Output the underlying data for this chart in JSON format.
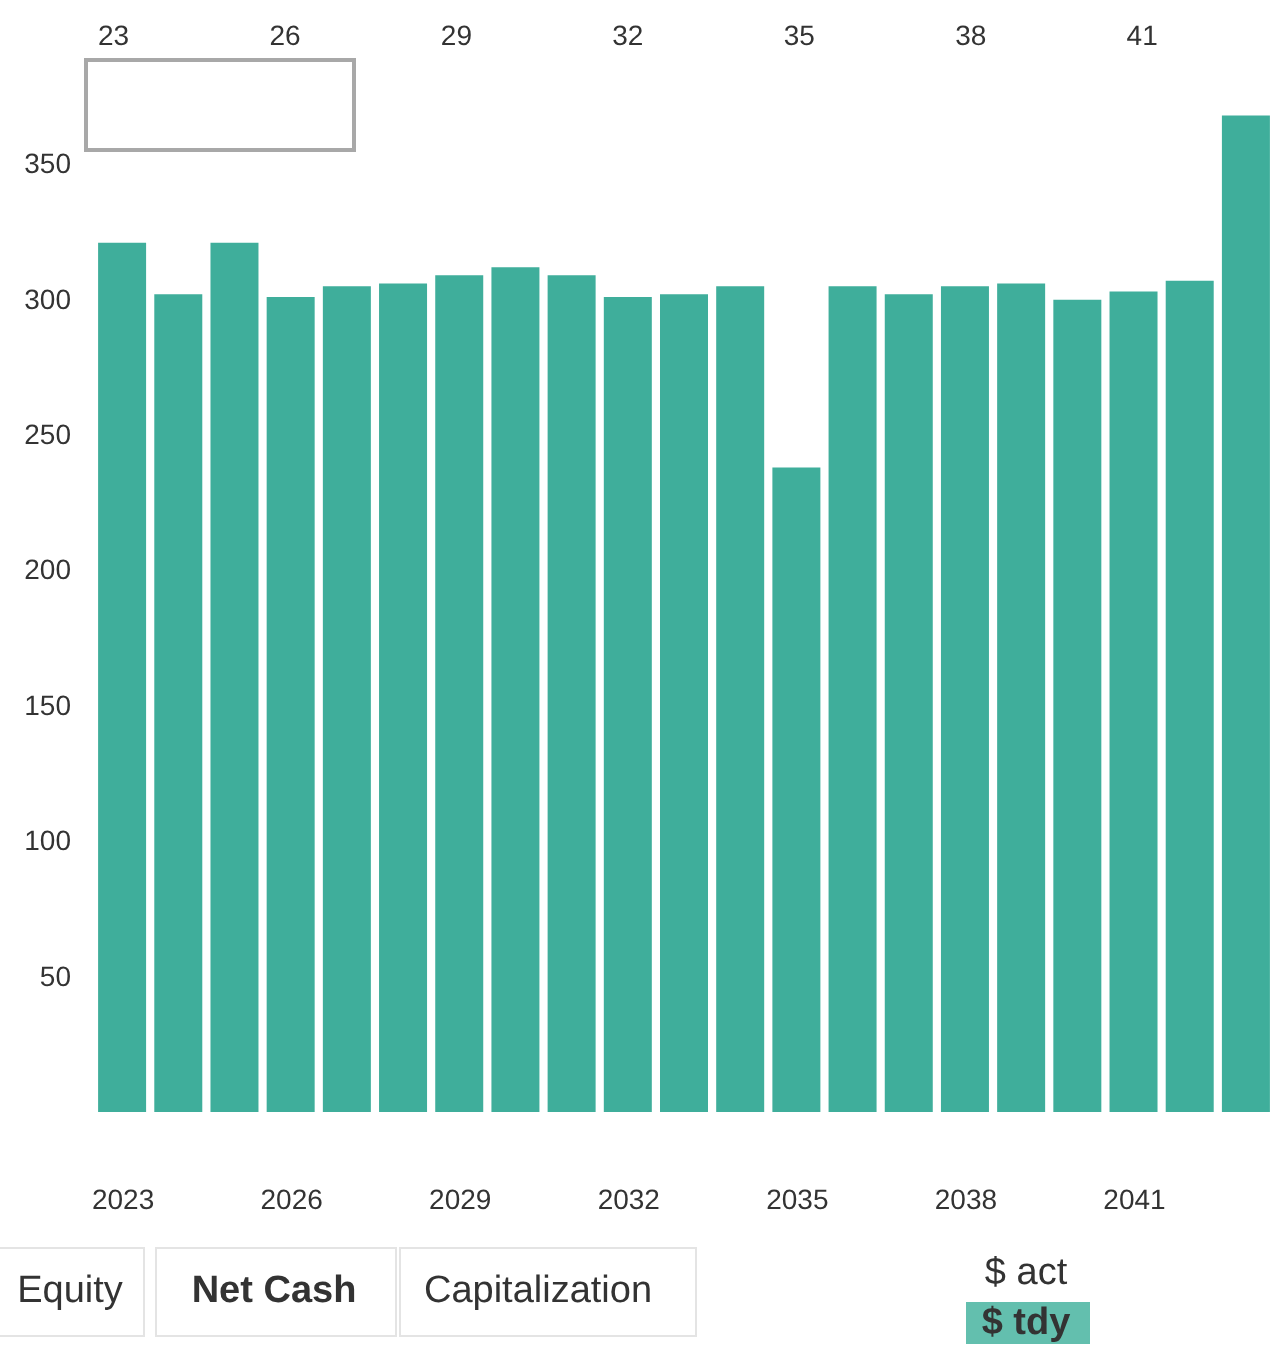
{
  "chart_data": {
    "type": "bar",
    "x": [
      2023,
      2024,
      2025,
      2026,
      2027,
      2028,
      2029,
      2030,
      2031,
      2032,
      2033,
      2034,
      2035,
      2036,
      2037,
      2038,
      2039,
      2040,
      2041,
      2042,
      2043
    ],
    "values": [
      321,
      302,
      321,
      301,
      305,
      306,
      309,
      312,
      309,
      301,
      302,
      305,
      238,
      305,
      302,
      305,
      306,
      300,
      303,
      307,
      368
    ],
    "color": "#3fae9b",
    "xlim": [
      2022.5,
      2043.5
    ],
    "xticks": [
      2023,
      2026,
      2029,
      2032,
      2035,
      2038,
      2041
    ],
    "x2lim": [
      2022.5,
      2043.5
    ],
    "x2ticks": [
      {
        "value": 2023,
        "label": "23"
      },
      {
        "value": 2026,
        "label": "26"
      },
      {
        "value": 2029,
        "label": "29"
      },
      {
        "value": 2032,
        "label": "32"
      },
      {
        "value": 2035,
        "label": "35"
      },
      {
        "value": 2038,
        "label": "38"
      },
      {
        "value": 2041,
        "label": "41"
      }
    ],
    "ylim": [
      0,
      390
    ],
    "yticks": [
      50,
      100,
      150,
      200,
      250,
      300,
      350
    ],
    "annotations": [
      "Equity",
      "Net Cash",
      "Capitalization",
      "$ act",
      "$ tdy"
    ]
  }
}
